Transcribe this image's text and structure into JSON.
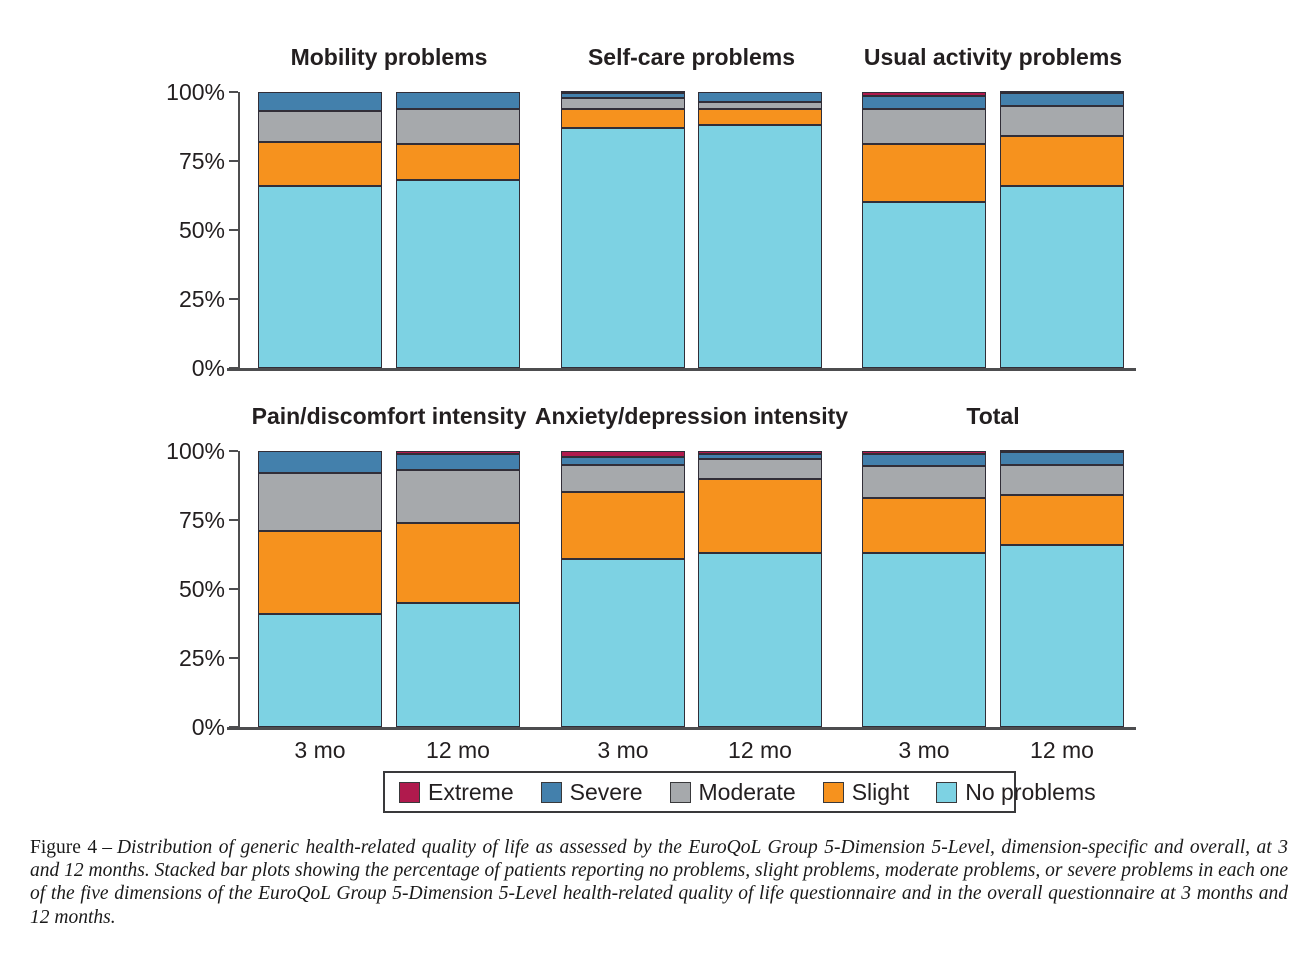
{
  "figure": {
    "caption_label": "Figure 4",
    "caption_dash": "–",
    "caption_text": "Distribution of generic health-related quality of life as assessed by the EuroQoL Group 5-Dimension 5-Level, dimension-specific and overall, at 3 and 12 months. Stacked bar plots showing the percentage of patients reporting no problems, slight problems, moderate problems, or severe problems in each one of the five dimensions of the EuroQoL Group 5-Dimension 5-Level health-related quality of life questionnaire and in the overall questionnaire at 3 months and 12 months."
  },
  "legend": {
    "items": [
      {
        "label": "Extreme",
        "color": "#b01a4d"
      },
      {
        "label": "Severe",
        "color": "#4380ac"
      },
      {
        "label": "Moderate",
        "color": "#a6a9ac"
      },
      {
        "label": "Slight",
        "color": "#f6921e"
      },
      {
        "label": "No problems",
        "color": "#7dd2e3"
      }
    ]
  },
  "chart_data": {
    "type": "bar",
    "variant": "stacked-100-percent",
    "categories": [
      "3 mo",
      "12 mo"
    ],
    "ylim": [
      0,
      100
    ],
    "ytick_labels": [
      "100%",
      "75%",
      "50%",
      "25%",
      "0%"
    ],
    "yticks": [
      100,
      75,
      50,
      25,
      0
    ],
    "grid": false,
    "legend_position": "bottom",
    "series_order_bottom_to_top": [
      "No problems",
      "Slight",
      "Moderate",
      "Severe",
      "Extreme"
    ],
    "colors": {
      "No problems": "#7dd2e3",
      "Slight": "#f6921e",
      "Moderate": "#a6a9ac",
      "Severe": "#4380ac",
      "Extreme": "#b01a4d"
    },
    "panels": [
      {
        "title": "Mobility problems",
        "series": {
          "No problems": [
            66,
            68
          ],
          "Slight": [
            16,
            13
          ],
          "Moderate": [
            11,
            13
          ],
          "Severe": [
            7,
            6
          ],
          "Extreme": [
            0,
            0
          ]
        }
      },
      {
        "title": "Self-care problems",
        "series": {
          "No problems": [
            87,
            88
          ],
          "Slight": [
            7,
            6
          ],
          "Moderate": [
            4,
            2.5
          ],
          "Severe": [
            1.5,
            3.5
          ],
          "Extreme": [
            0.5,
            0
          ]
        }
      },
      {
        "title": "Usual activity problems",
        "series": {
          "No problems": [
            60,
            66
          ],
          "Slight": [
            21,
            18
          ],
          "Moderate": [
            13,
            11
          ],
          "Severe": [
            4.5,
            4.5
          ],
          "Extreme": [
            1.5,
            0.5
          ]
        }
      },
      {
        "title": "Pain/discomfort intensity",
        "series": {
          "No problems": [
            41,
            45
          ],
          "Slight": [
            30,
            29
          ],
          "Moderate": [
            21,
            19
          ],
          "Severe": [
            8,
            6
          ],
          "Extreme": [
            0,
            1
          ]
        }
      },
      {
        "title": "Anxiety/depression intensity",
        "series": {
          "No problems": [
            61,
            63
          ],
          "Slight": [
            24,
            27
          ],
          "Moderate": [
            10,
            7
          ],
          "Severe": [
            3,
            2
          ],
          "Extreme": [
            2,
            1
          ]
        }
      },
      {
        "title": "Total",
        "series": {
          "No problems": [
            63,
            66
          ],
          "Slight": [
            20,
            18
          ],
          "Moderate": [
            11.5,
            11
          ],
          "Severe": [
            4.5,
            4.5
          ],
          "Extreme": [
            1,
            0.5
          ]
        }
      }
    ]
  }
}
